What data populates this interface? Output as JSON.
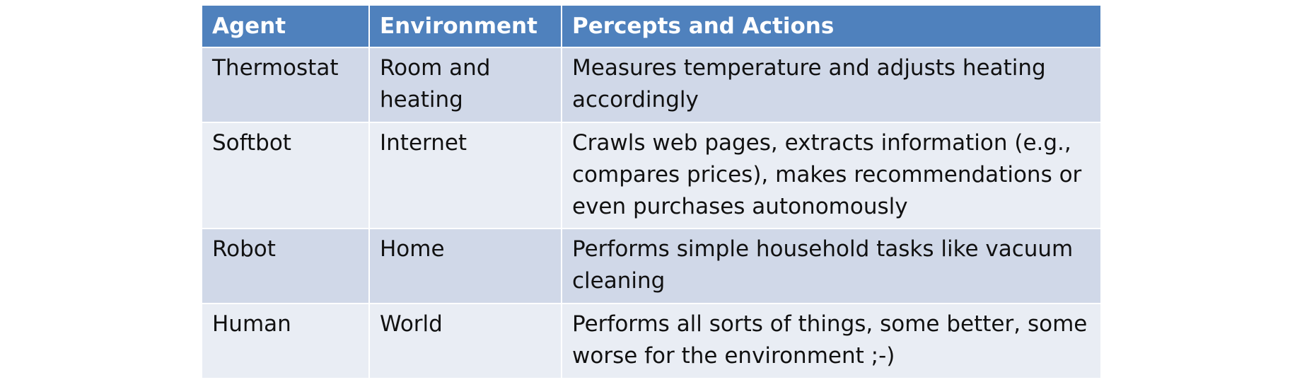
{
  "table": {
    "headers": [
      "Agent",
      "Environment",
      "Percepts and Actions"
    ],
    "rows": [
      [
        "Thermostat",
        "Room and heating",
        "Measures temperature and adjusts heating accordingly"
      ],
      [
        "Softbot",
        "Internet",
        "Crawls web pages, extracts information (e.g., compares prices), makes recommendations or even purchases autonomously"
      ],
      [
        "Robot",
        "Home",
        "Performs simple household tasks like vacuum cleaning"
      ],
      [
        "Human",
        "World",
        "Performs all sorts of things, some better, some worse for the environment ;-)"
      ]
    ]
  },
  "colors": {
    "header_bg": "#4f81bd",
    "row_odd_bg": "#d0d8e8",
    "row_even_bg": "#e9edf4"
  }
}
